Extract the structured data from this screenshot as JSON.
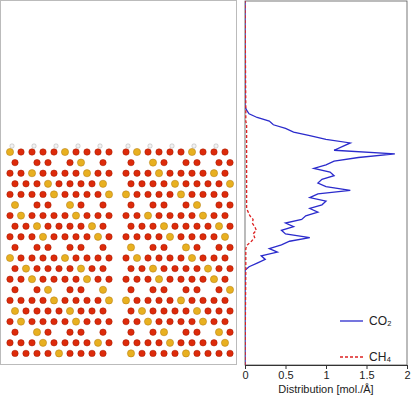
{
  "chart_data": {
    "type": "line",
    "orientation": "horizontal",
    "y_label": "Distribution [mol./Å]",
    "x": [
      0,
      26,
      27,
      28,
      29,
      30,
      31,
      32,
      33,
      34,
      35,
      36,
      37,
      38,
      39,
      40,
      41,
      42,
      43,
      44,
      45,
      46,
      47,
      48,
      49,
      50,
      51,
      52,
      53,
      54,
      55,
      56,
      57,
      58,
      59,
      60,
      61,
      62,
      63,
      64,
      65,
      66,
      67,
      68,
      69,
      70,
      71,
      100
    ],
    "xlim": [
      0,
      100
    ],
    "ylim": [
      0,
      2
    ],
    "yticks": [
      0,
      0.5,
      1,
      1.5,
      2
    ],
    "tick_labels": "y",
    "legend": "bottom-right",
    "series": [
      {
        "name": "CO₂",
        "color": "#2b2bcc",
        "line_style": "solid",
        "values": [
          0,
          0,
          0.05,
          0.15,
          0.25,
          0.2,
          0.4,
          0.3,
          0.45,
          0.55,
          0.8,
          0.5,
          0.45,
          0.6,
          0.5,
          0.7,
          0.75,
          0.9,
          0.8,
          0.95,
          1.0,
          0.8,
          0.9,
          1.3,
          1.0,
          0.9,
          0.95,
          1.1,
          1.05,
          0.85,
          1.0,
          1.1,
          1.4,
          1.85,
          1.1,
          1.2,
          1.3,
          1.0,
          0.8,
          0.6,
          0.5,
          0.35,
          0.3,
          0.15,
          0.05,
          0.02,
          0,
          0
        ]
      },
      {
        "name": "CH₄",
        "color": "#dd2222",
        "line_style": "dashed",
        "values": [
          0,
          0.01,
          0.01,
          0.01,
          0.01,
          0.01,
          0.01,
          0.01,
          0.03,
          0.08,
          0.12,
          0.1,
          0.14,
          0.12,
          0.09,
          0.1,
          0.06,
          0.04,
          0.02,
          0.02,
          0.02,
          0.02,
          0.02,
          0.02,
          0.02,
          0.02,
          0.02,
          0.02,
          0.02,
          0.02,
          0.02,
          0.02,
          0.02,
          0.02,
          0.02,
          0.02,
          0.02,
          0.02,
          0.02,
          0.02,
          0.02,
          0.02,
          0.01,
          0.01,
          0.01,
          0.01,
          0.01,
          0
        ]
      }
    ]
  }
}
